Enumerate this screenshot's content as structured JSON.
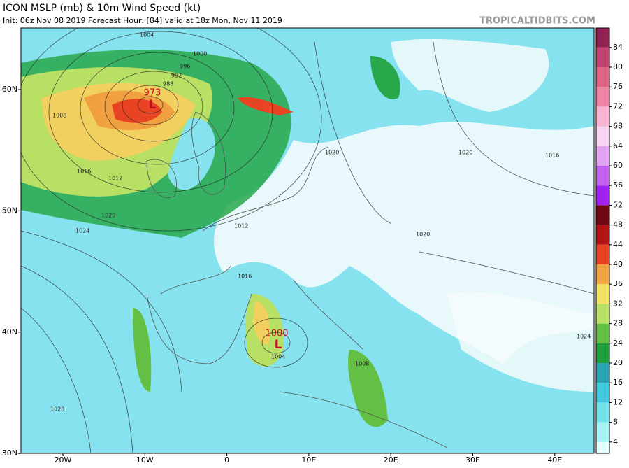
{
  "header": {
    "title": "ICON MSLP (mb) & 10m Wind Speed (kt)",
    "subtitle": "Init: 06z Nov 08 2019   Forecast Hour: [84]   valid at 18z Mon, Nov 11 2019",
    "site": "TROPICALTIDBITS.COM"
  },
  "colorbar": {
    "bins": [
      0,
      4,
      8,
      12,
      16,
      20,
      24,
      28,
      32,
      36,
      40,
      44,
      48,
      52,
      56,
      60,
      64,
      68,
      72,
      76,
      80,
      84,
      88
    ],
    "colors": [
      "#e4ffff",
      "#a8f2f4",
      "#72e2ec",
      "#44cade",
      "#2ca4b4",
      "#1e9e3c",
      "#64c044",
      "#b8e064",
      "#f2e264",
      "#f0a444",
      "#e84424",
      "#b01414",
      "#700812",
      "#a020f0",
      "#c462f0",
      "#e2a4f2",
      "#f8d4f2",
      "#f8b4d4",
      "#f084a4",
      "#e06484",
      "#c24272",
      "#902052"
    ],
    "ticks": [
      4,
      8,
      12,
      16,
      20,
      24,
      28,
      32,
      36,
      40,
      44,
      48,
      52,
      56,
      60,
      64,
      68,
      72,
      76,
      80,
      84
    ]
  },
  "axes": {
    "lon_labels": [
      "20W",
      "10W",
      "0",
      "10E",
      "20E",
      "30E",
      "40E"
    ],
    "lat_labels": [
      "60N",
      "50N",
      "40N",
      "30N"
    ]
  },
  "lows": [
    {
      "pressure": "973",
      "symbol": "L"
    },
    {
      "pressure": "1000",
      "symbol": "L"
    }
  ],
  "isobar_labels": [
    "1004",
    "1000",
    "996",
    "992",
    "988",
    "1008",
    "1012",
    "1016",
    "1020",
    "1024",
    "1028",
    "1016",
    "1020",
    "1012",
    "1008",
    "1004",
    "1016",
    "1020",
    "1020",
    "1024"
  ]
}
